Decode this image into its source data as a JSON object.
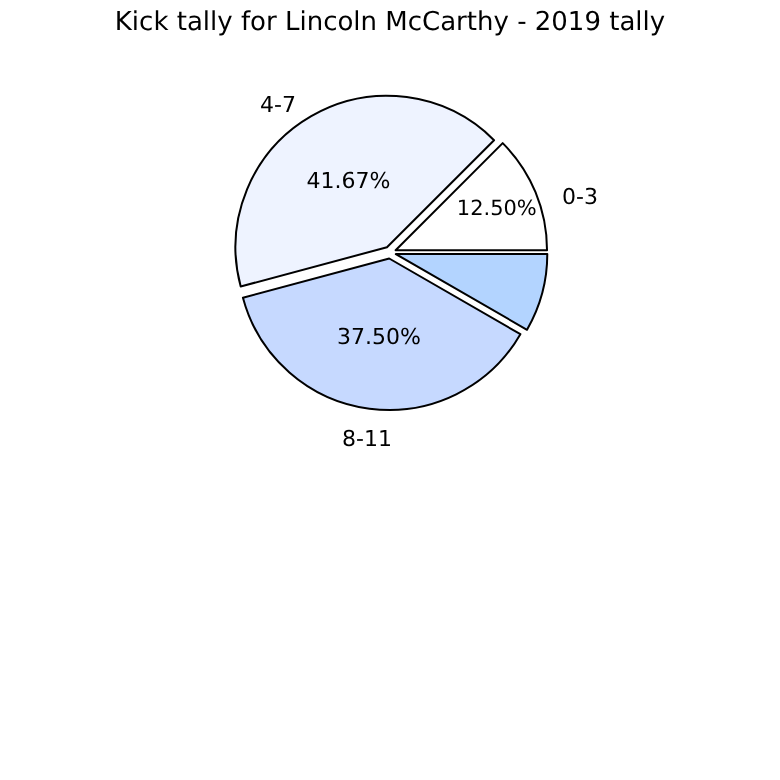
{
  "chart_data": {
    "type": "pie",
    "title": "Kick tally for Lincoln McCarthy - 2019 tally",
    "categories": [
      "0-3",
      "4-7",
      "8-11",
      null
    ],
    "values": [
      12.5,
      41.67,
      37.5,
      8.33
    ],
    "value_labels": [
      "12.50%",
      "41.67%",
      "37.50%",
      null
    ],
    "colors": [
      "#ffffff",
      "#eef3ff",
      "#c6d9ff",
      "#b3d4ff"
    ],
    "legend": false
  }
}
